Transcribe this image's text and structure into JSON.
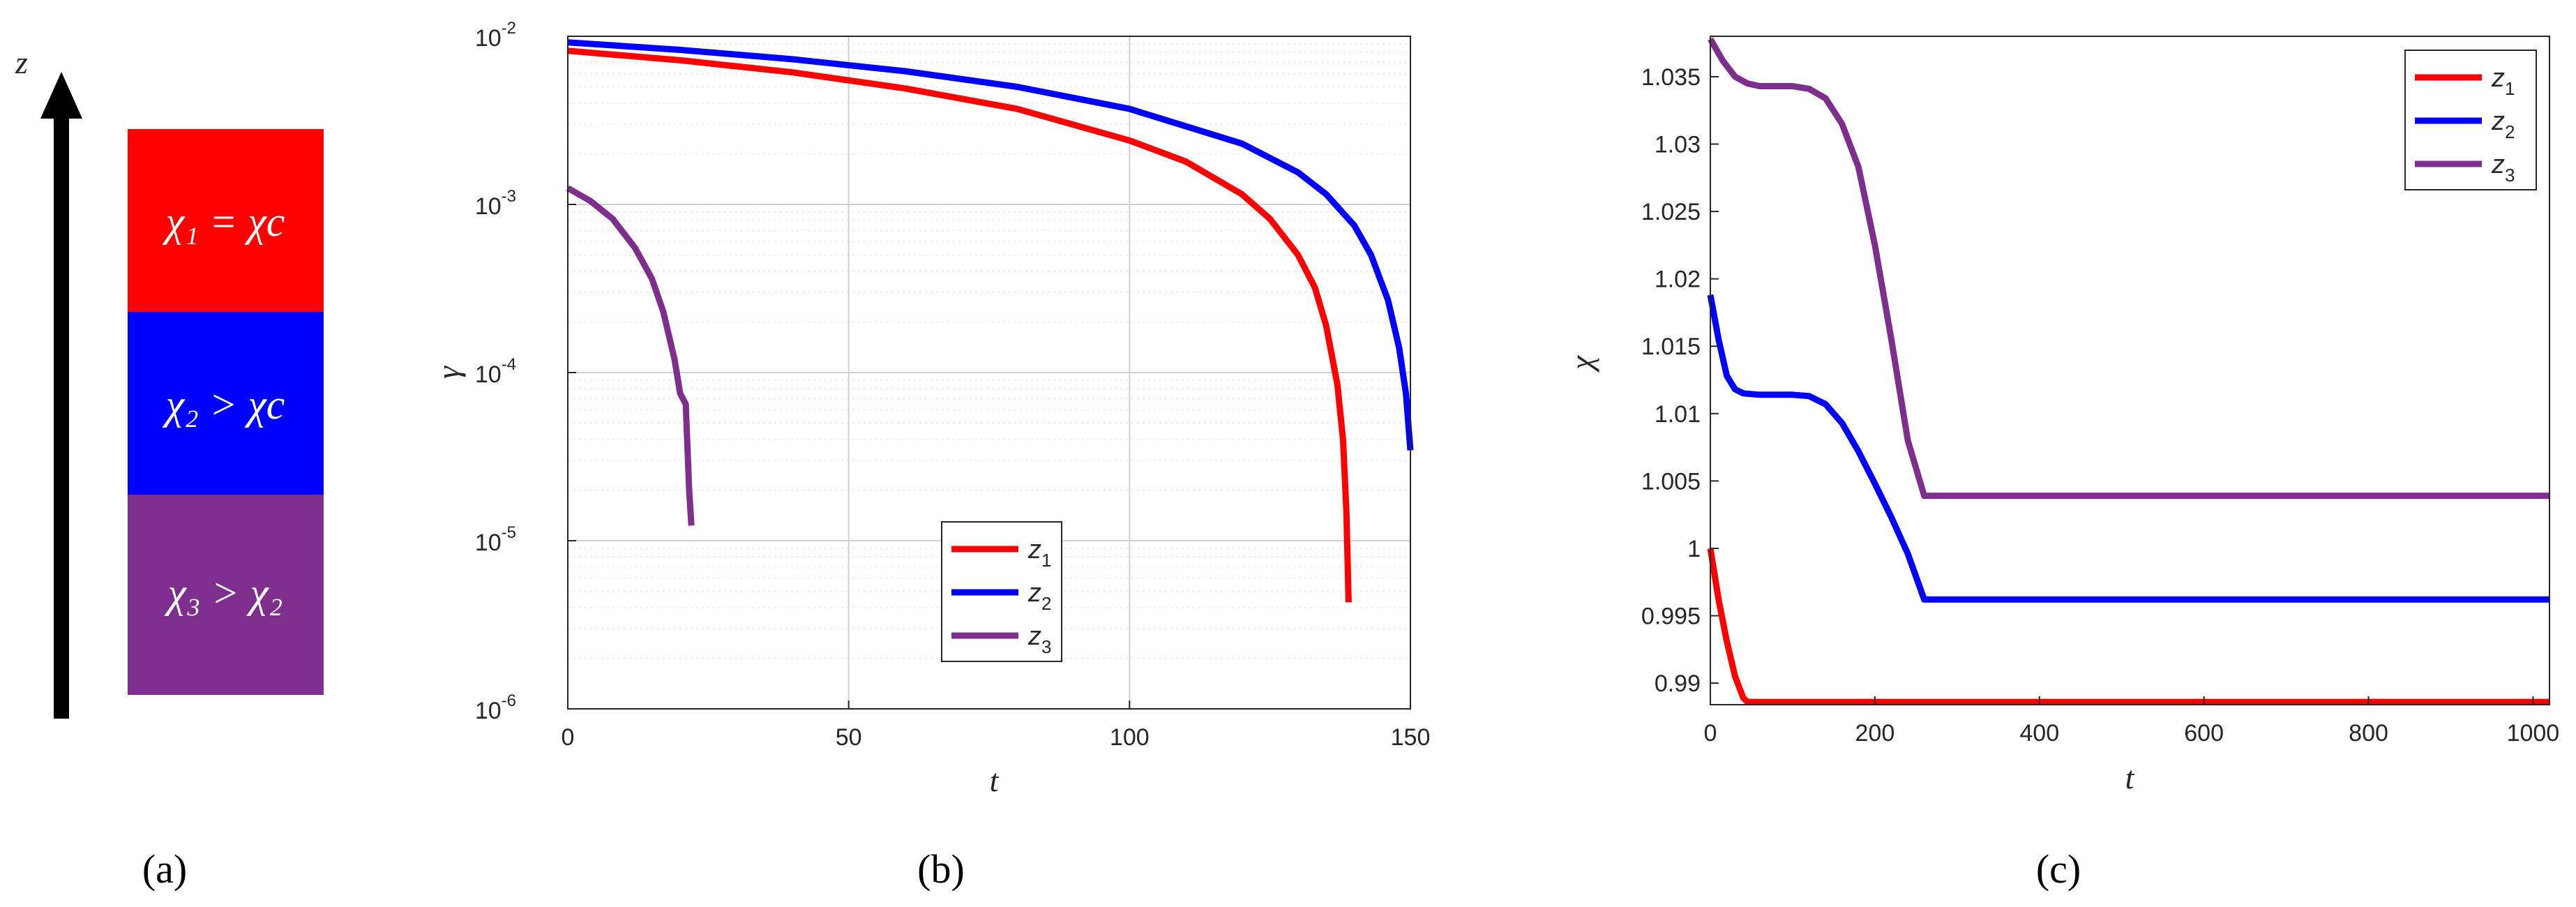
{
  "panel_labels": {
    "a": "(a)",
    "b": "(b)",
    "c": "(c)"
  },
  "panel_a": {
    "axis_label": "z",
    "layers": [
      {
        "label": "χ₁ = χc",
        "color": "#ff0000"
      },
      {
        "label": "χ₂ > χc",
        "color": "#0000ff"
      },
      {
        "label": "χ₃ > χ₂",
        "color": "#7e2f8e"
      }
    ]
  },
  "chart_data": [
    {
      "type": "line",
      "xlabel": "t",
      "ylabel": "γ",
      "yscale": "log",
      "xlim": [
        0,
        150
      ],
      "ylim": [
        1e-06,
        0.01
      ],
      "xticks": [
        0,
        50,
        100,
        150
      ],
      "xtick_labels": [
        "0",
        "50",
        "100",
        "150"
      ],
      "yticks": [
        1e-06,
        1e-05,
        0.0001,
        0.001,
        0.01
      ],
      "ytick_labels": [
        {
          "base": "10",
          "exp": "-6"
        },
        {
          "base": "10",
          "exp": "-5"
        },
        {
          "base": "10",
          "exp": "-4"
        },
        {
          "base": "10",
          "exp": "-3"
        },
        {
          "base": "10",
          "exp": "-2"
        }
      ],
      "grid": true,
      "legend_position": "bottom-center",
      "series": [
        {
          "name": "z",
          "sub": "1",
          "color": "#ff0000",
          "x": [
            0,
            20,
            40,
            60,
            80,
            100,
            110,
            120,
            125,
            130,
            133,
            135,
            137,
            138,
            138.6,
            139
          ],
          "y": [
            0.0082,
            0.0072,
            0.0061,
            0.0049,
            0.0037,
            0.0024,
            0.0018,
            0.00115,
            0.00082,
            0.0005,
            0.00032,
            0.00019,
            8.5e-05,
            4e-05,
            1.5e-05,
            4.3e-06
          ]
        },
        {
          "name": "z",
          "sub": "2",
          "color": "#0000ff",
          "x": [
            0,
            20,
            40,
            60,
            80,
            100,
            120,
            130,
            135,
            140,
            143,
            146,
            148,
            149.2,
            150
          ],
          "y": [
            0.0092,
            0.0083,
            0.0073,
            0.0062,
            0.005,
            0.0037,
            0.0023,
            0.00155,
            0.00115,
            0.00075,
            0.0005,
            0.00027,
            0.00014,
            7.5e-05,
            3.45e-05
          ]
        },
        {
          "name": "z",
          "sub": "3",
          "color": "#7e2f8e",
          "x": [
            0,
            4,
            8,
            12,
            15,
            17,
            19,
            20,
            21,
            21.6,
            22
          ],
          "y": [
            0.00125,
            0.00105,
            0.00082,
            0.00055,
            0.00036,
            0.00023,
            0.00012,
            7.5e-05,
            6.5e-05,
            2e-05,
            1.23e-05
          ]
        }
      ]
    },
    {
      "type": "line",
      "xlabel": "t",
      "ylabel": "χ",
      "xlim": [
        0,
        1020
      ],
      "ylim": [
        0.9884,
        1.038
      ],
      "xticks": [
        0,
        200,
        400,
        600,
        800,
        1000
      ],
      "xtick_labels": [
        "0",
        "200",
        "400",
        "600",
        "800",
        "1000"
      ],
      "yticks": [
        0.99,
        0.995,
        1,
        1.005,
        1.01,
        1.015,
        1.02,
        1.025,
        1.03,
        1.035
      ],
      "ytick_labels": [
        "0.99",
        "0.995",
        "1",
        "1.005",
        "1.01",
        "1.015",
        "1.02",
        "1.025",
        "1.03",
        "1.035"
      ],
      "grid": false,
      "legend_position": "top-right",
      "series": [
        {
          "name": "z",
          "sub": "1",
          "color": "#ff0000",
          "x": [
            0,
            10,
            20,
            30,
            40,
            45,
            1020
          ],
          "y": [
            1.0,
            0.9962,
            0.9931,
            0.9905,
            0.9889,
            0.9886,
            0.9886
          ]
        },
        {
          "name": "z",
          "sub": "2",
          "color": "#0000ff",
          "x": [
            0,
            10,
            20,
            30,
            40,
            60,
            80,
            100,
            120,
            140,
            160,
            180,
            200,
            220,
            240,
            260,
            1020
          ],
          "y": [
            1.0188,
            1.0155,
            1.0128,
            1.0118,
            1.0115,
            1.0114,
            1.0114,
            1.0114,
            1.0113,
            1.0107,
            1.0093,
            1.0072,
            1.0048,
            1.0023,
            0.9996,
            0.9962,
            0.9962
          ]
        },
        {
          "name": "z",
          "sub": "3",
          "color": "#7e2f8e",
          "x": [
            0,
            15,
            30,
            45,
            60,
            80,
            100,
            120,
            140,
            160,
            180,
            200,
            220,
            240,
            260,
            1020
          ],
          "y": [
            1.0378,
            1.0362,
            1.035,
            1.0345,
            1.0343,
            1.0343,
            1.0343,
            1.0341,
            1.0334,
            1.0315,
            1.0283,
            1.0225,
            1.0155,
            1.008,
            1.0039,
            1.0039
          ]
        }
      ]
    }
  ]
}
